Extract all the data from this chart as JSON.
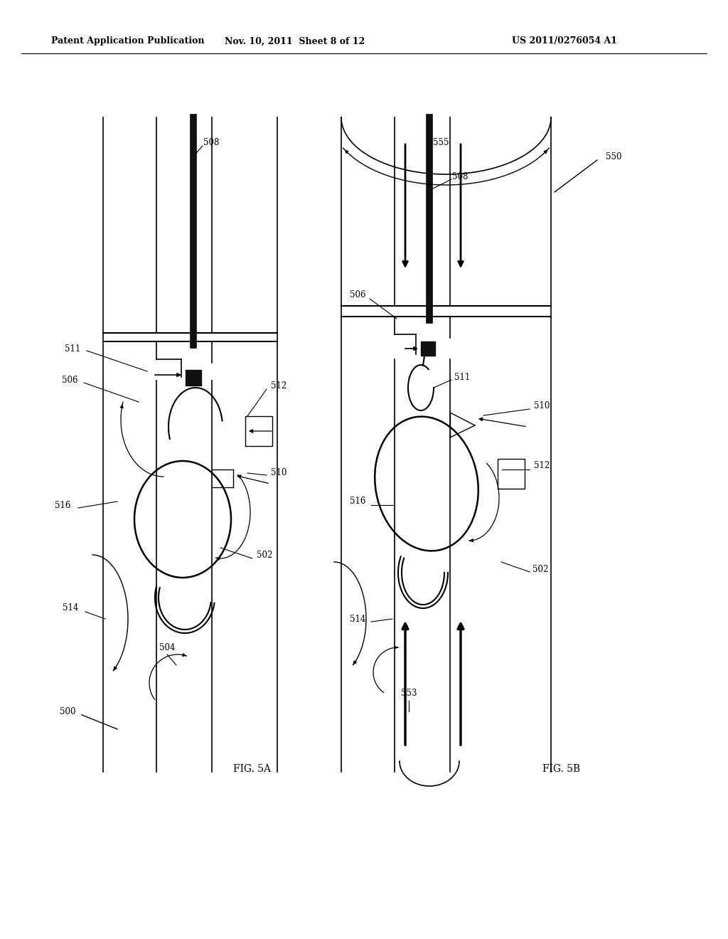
{
  "header_left": "Patent Application Publication",
  "header_mid": "Nov. 10, 2011  Sheet 8 of 12",
  "header_right": "US 2011/0276054 A1",
  "fig_a_label": "FIG. 5A",
  "fig_b_label": "FIG. 5B",
  "bg_color": "#ffffff",
  "line_color": "#000000"
}
